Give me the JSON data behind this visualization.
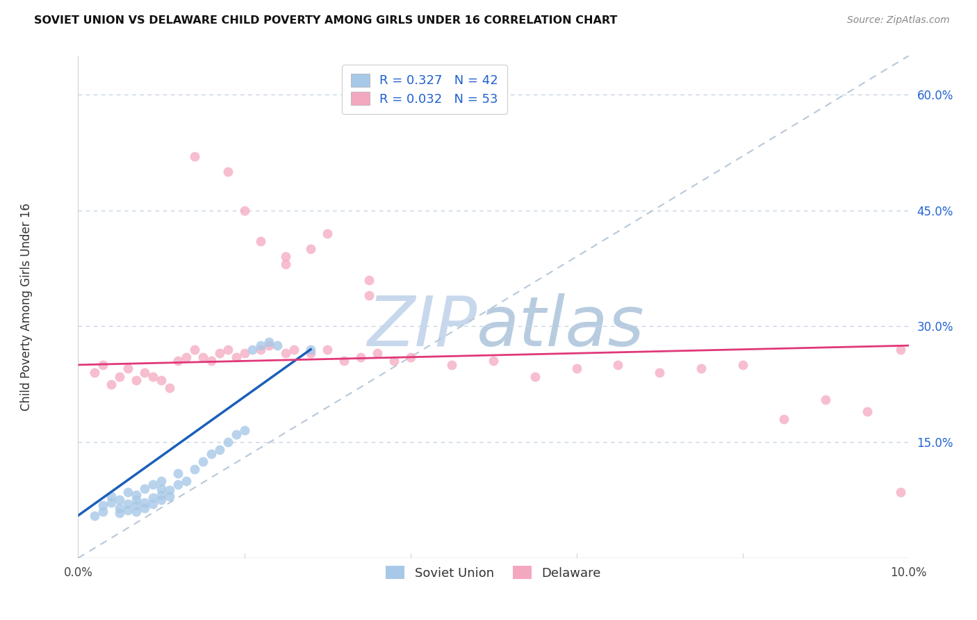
{
  "title": "SOVIET UNION VS DELAWARE CHILD POVERTY AMONG GIRLS UNDER 16 CORRELATION CHART",
  "source": "Source: ZipAtlas.com",
  "ylabel": "Child Poverty Among Girls Under 16",
  "xlim": [
    0.0,
    0.1
  ],
  "ylim": [
    0.0,
    0.65
  ],
  "right_ytick_vals": [
    0.15,
    0.3,
    0.45,
    0.6
  ],
  "right_yticklabels": [
    "15.0%",
    "30.0%",
    "45.0%",
    "60.0%"
  ],
  "soviet_dot_color": "#a8c8e8",
  "delaware_dot_color": "#f4a8c0",
  "soviet_line_color": "#1a5fba",
  "delaware_line_color": "#e03878",
  "diagonal_color": "#b8c8d8",
  "grid_color": "#c8d4e4",
  "background_color": "#ffffff",
  "watermark_color": "#dce8f5",
  "legend_text_color": "#2060d0",
  "R_soviet": 0.327,
  "N_soviet": 42,
  "R_delaware": 0.032,
  "N_delaware": 53,
  "su_x": [
    0.002,
    0.003,
    0.003,
    0.004,
    0.004,
    0.005,
    0.005,
    0.005,
    0.006,
    0.006,
    0.006,
    0.007,
    0.007,
    0.007,
    0.007,
    0.008,
    0.008,
    0.008,
    0.009,
    0.009,
    0.009,
    0.01,
    0.01,
    0.01,
    0.01,
    0.011,
    0.011,
    0.012,
    0.012,
    0.013,
    0.014,
    0.015,
    0.016,
    0.017,
    0.018,
    0.019,
    0.02,
    0.021,
    0.022,
    0.023,
    0.024,
    0.028
  ],
  "su_y": [
    0.055,
    0.06,
    0.068,
    0.072,
    0.08,
    0.058,
    0.065,
    0.075,
    0.062,
    0.07,
    0.085,
    0.06,
    0.068,
    0.075,
    0.082,
    0.065,
    0.072,
    0.09,
    0.07,
    0.078,
    0.095,
    0.075,
    0.082,
    0.09,
    0.1,
    0.08,
    0.088,
    0.095,
    0.11,
    0.1,
    0.115,
    0.125,
    0.135,
    0.14,
    0.15,
    0.16,
    0.165,
    0.27,
    0.275,
    0.28,
    0.275,
    0.27
  ],
  "de_x": [
    0.002,
    0.003,
    0.004,
    0.005,
    0.006,
    0.007,
    0.008,
    0.009,
    0.01,
    0.011,
    0.012,
    0.013,
    0.014,
    0.015,
    0.016,
    0.017,
    0.018,
    0.019,
    0.02,
    0.022,
    0.023,
    0.025,
    0.026,
    0.028,
    0.03,
    0.032,
    0.034,
    0.036,
    0.038,
    0.04,
    0.045,
    0.05,
    0.055,
    0.06,
    0.065,
    0.07,
    0.075,
    0.08,
    0.085,
    0.09,
    0.095,
    0.099,
    0.099,
    0.014,
    0.02,
    0.025,
    0.03,
    0.035,
    0.025,
    0.028,
    0.022,
    0.018,
    0.035
  ],
  "de_y": [
    0.24,
    0.25,
    0.225,
    0.235,
    0.245,
    0.23,
    0.24,
    0.235,
    0.23,
    0.22,
    0.255,
    0.26,
    0.27,
    0.26,
    0.255,
    0.265,
    0.27,
    0.26,
    0.265,
    0.27,
    0.275,
    0.265,
    0.27,
    0.265,
    0.27,
    0.255,
    0.26,
    0.265,
    0.255,
    0.26,
    0.25,
    0.255,
    0.235,
    0.245,
    0.25,
    0.24,
    0.245,
    0.25,
    0.18,
    0.205,
    0.19,
    0.085,
    0.27,
    0.52,
    0.45,
    0.39,
    0.42,
    0.36,
    0.38,
    0.4,
    0.41,
    0.5,
    0.34
  ]
}
